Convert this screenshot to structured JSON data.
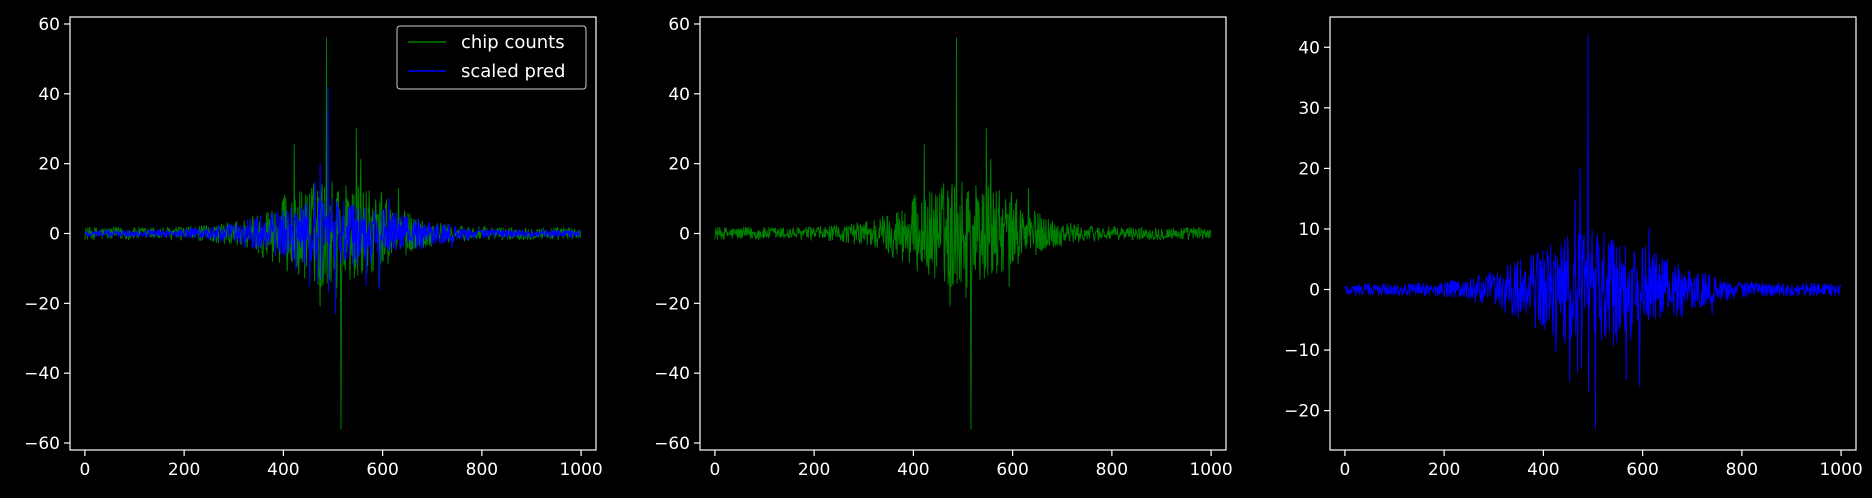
{
  "chart_data": [
    {
      "type": "line",
      "xlim": [
        -30,
        1030
      ],
      "ylim": [
        -62,
        62
      ],
      "xticks": [
        0,
        200,
        400,
        600,
        800,
        1000
      ],
      "yticks": [
        -60,
        -40,
        -20,
        0,
        20,
        40,
        60
      ],
      "xtick_labels": [
        "0",
        "200",
        "400",
        "600",
        "800",
        "1000"
      ],
      "ytick_labels": [
        "−60",
        "−40",
        "−20",
        "0",
        "20",
        "40",
        "60"
      ],
      "legend": {
        "placement": "top-right",
        "entries": [
          "chip counts",
          "scaled pred"
        ]
      },
      "series": [
        {
          "name": "chip counts",
          "color": "#008000",
          "n_points": 1000,
          "peak": {
            "x": 487,
            "y": 56
          },
          "trough": {
            "x": 516,
            "y": -56
          },
          "envelope": {
            "center": 500,
            "width": 140,
            "amplitude": 14,
            "baseline": 1.8
          }
        },
        {
          "name": "scaled pred",
          "color": "#0000ff",
          "n_points": 1000,
          "peak": {
            "x": 490,
            "y": 42
          },
          "trough": {
            "x": 505,
            "y": -23
          },
          "envelope": {
            "center": 505,
            "width": 170,
            "amplitude": 9,
            "baseline": 1.0
          }
        }
      ]
    },
    {
      "type": "line",
      "xlim": [
        -30,
        1030
      ],
      "ylim": [
        -62,
        62
      ],
      "xticks": [
        0,
        200,
        400,
        600,
        800,
        1000
      ],
      "yticks": [
        -60,
        -40,
        -20,
        0,
        20,
        40,
        60
      ],
      "xtick_labels": [
        "0",
        "200",
        "400",
        "600",
        "800",
        "1000"
      ],
      "ytick_labels": [
        "−60",
        "−40",
        "−20",
        "0",
        "20",
        "40",
        "60"
      ],
      "series": [
        {
          "color": "#008000",
          "n_points": 1000,
          "peak": {
            "x": 487,
            "y": 56
          },
          "trough": {
            "x": 516,
            "y": -56
          },
          "envelope": {
            "center": 500,
            "width": 140,
            "amplitude": 14,
            "baseline": 1.8
          }
        }
      ]
    },
    {
      "type": "line",
      "xlim": [
        -30,
        1030
      ],
      "ylim": [
        -26.5,
        45
      ],
      "xticks": [
        0,
        200,
        400,
        600,
        800,
        1000
      ],
      "yticks": [
        -20,
        -10,
        0,
        10,
        20,
        30,
        40
      ],
      "xtick_labels": [
        "0",
        "200",
        "400",
        "600",
        "800",
        "1000"
      ],
      "ytick_labels": [
        "−20",
        "−10",
        "0",
        "10",
        "20",
        "30",
        "40"
      ],
      "series": [
        {
          "color": "#0000ff",
          "n_points": 1000,
          "peak": {
            "x": 490,
            "y": 42
          },
          "trough": {
            "x": 505,
            "y": -23
          },
          "envelope": {
            "center": 505,
            "width": 170,
            "amplitude": 9,
            "baseline": 1.0
          }
        }
      ]
    }
  ]
}
